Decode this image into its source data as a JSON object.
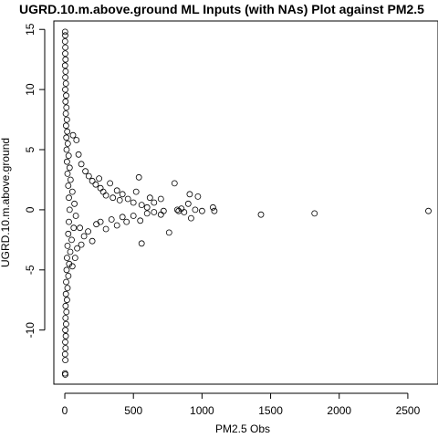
{
  "chart_data": {
    "type": "scatter",
    "title": "UGRD.10.m.above.ground ML Inputs (with NAs) Plot against PM2.5",
    "xlabel": "PM2.5 Obs",
    "ylabel": "UGRD.10.m.above.ground",
    "xlim": [
      -80,
      2720
    ],
    "ylim": [
      -14.5,
      15.7
    ],
    "x_ticks": [
      0,
      500,
      1000,
      1500,
      2000,
      2500
    ],
    "y_ticks": [
      -10,
      -5,
      0,
      5,
      10,
      15
    ],
    "grid": false,
    "legend": "none",
    "points": [
      [
        2,
        14.8
      ],
      [
        3,
        14.5
      ],
      [
        2,
        14.0
      ],
      [
        4,
        13.5
      ],
      [
        3,
        13.0
      ],
      [
        5,
        12.5
      ],
      [
        2,
        12.0
      ],
      [
        6,
        11.5
      ],
      [
        4,
        11.0
      ],
      [
        8,
        10.5
      ],
      [
        3,
        10.0
      ],
      [
        10,
        9.5
      ],
      [
        5,
        9.0
      ],
      [
        12,
        8.5
      ],
      [
        7,
        8.0
      ],
      [
        15,
        7.5
      ],
      [
        9,
        7.0
      ],
      [
        18,
        6.5
      ],
      [
        11,
        6.0
      ],
      [
        22,
        5.5
      ],
      [
        13,
        5.0
      ],
      [
        28,
        4.5
      ],
      [
        16,
        4.0
      ],
      [
        35,
        3.5
      ],
      [
        20,
        3.0
      ],
      [
        42,
        2.5
      ],
      [
        25,
        2.0
      ],
      [
        55,
        1.5
      ],
      [
        30,
        1.0
      ],
      [
        70,
        0.5
      ],
      [
        35,
        0.0
      ],
      [
        80,
        -0.5
      ],
      [
        30,
        -1.0
      ],
      [
        65,
        -1.5
      ],
      [
        25,
        -2.0
      ],
      [
        50,
        -2.5
      ],
      [
        20,
        -3.0
      ],
      [
        40,
        -3.5
      ],
      [
        16,
        -4.0
      ],
      [
        32,
        -4.5
      ],
      [
        13,
        -5.0
      ],
      [
        26,
        -5.5
      ],
      [
        10,
        -6.0
      ],
      [
        20,
        -6.5
      ],
      [
        8,
        -7.0
      ],
      [
        16,
        -7.5
      ],
      [
        6,
        -8.0
      ],
      [
        12,
        -8.5
      ],
      [
        5,
        -9.0
      ],
      [
        9,
        -9.5
      ],
      [
        4,
        -10.0
      ],
      [
        7,
        -10.5
      ],
      [
        3,
        -11.0
      ],
      [
        5,
        -11.5
      ],
      [
        2,
        -12.0
      ],
      [
        4,
        -12.5
      ],
      [
        2,
        -13.6
      ],
      [
        3,
        -13.7
      ],
      [
        60,
        6.2
      ],
      [
        85,
        5.8
      ],
      [
        100,
        4.6
      ],
      [
        120,
        3.8
      ],
      [
        150,
        3.2
      ],
      [
        175,
        2.8
      ],
      [
        200,
        2.4
      ],
      [
        225,
        2.1
      ],
      [
        250,
        2.6
      ],
      [
        260,
        1.8
      ],
      [
        280,
        1.5
      ],
      [
        300,
        1.2
      ],
      [
        330,
        2.2
      ],
      [
        350,
        1.0
      ],
      [
        380,
        1.6
      ],
      [
        400,
        0.8
      ],
      [
        420,
        1.3
      ],
      [
        460,
        0.9
      ],
      [
        500,
        0.6
      ],
      [
        520,
        1.5
      ],
      [
        540,
        2.7
      ],
      [
        560,
        0.4
      ],
      [
        600,
        0.2
      ],
      [
        620,
        1.0
      ],
      [
        650,
        0.6
      ],
      [
        700,
        0.9
      ],
      [
        720,
        -0.1
      ],
      [
        760,
        -1.9
      ],
      [
        110,
        -1.5
      ],
      [
        140,
        -2.2
      ],
      [
        170,
        -1.8
      ],
      [
        200,
        -2.6
      ],
      [
        230,
        -1.2
      ],
      [
        260,
        -1.0
      ],
      [
        300,
        -1.6
      ],
      [
        340,
        -0.8
      ],
      [
        380,
        -1.3
      ],
      [
        420,
        -0.6
      ],
      [
        450,
        -1.0
      ],
      [
        500,
        -0.5
      ],
      [
        550,
        -0.9
      ],
      [
        560,
        -2.8
      ],
      [
        600,
        -0.3
      ],
      [
        650,
        -0.2
      ],
      [
        700,
        -0.4
      ],
      [
        90,
        -3.2
      ],
      [
        75,
        -4.0
      ],
      [
        55,
        -4.7
      ],
      [
        120,
        -2.9
      ],
      [
        800,
        2.2
      ],
      [
        820,
        0.0
      ],
      [
        830,
        -0.1
      ],
      [
        850,
        0.1
      ],
      [
        870,
        -0.2
      ],
      [
        900,
        0.5
      ],
      [
        910,
        1.3
      ],
      [
        920,
        -0.7
      ],
      [
        950,
        0.0
      ],
      [
        970,
        1.1
      ],
      [
        1000,
        -0.1
      ],
      [
        1080,
        0.2
      ],
      [
        1090,
        -0.1
      ],
      [
        1430,
        -0.4
      ],
      [
        1820,
        -0.3
      ],
      [
        2650,
        -0.1
      ]
    ]
  }
}
